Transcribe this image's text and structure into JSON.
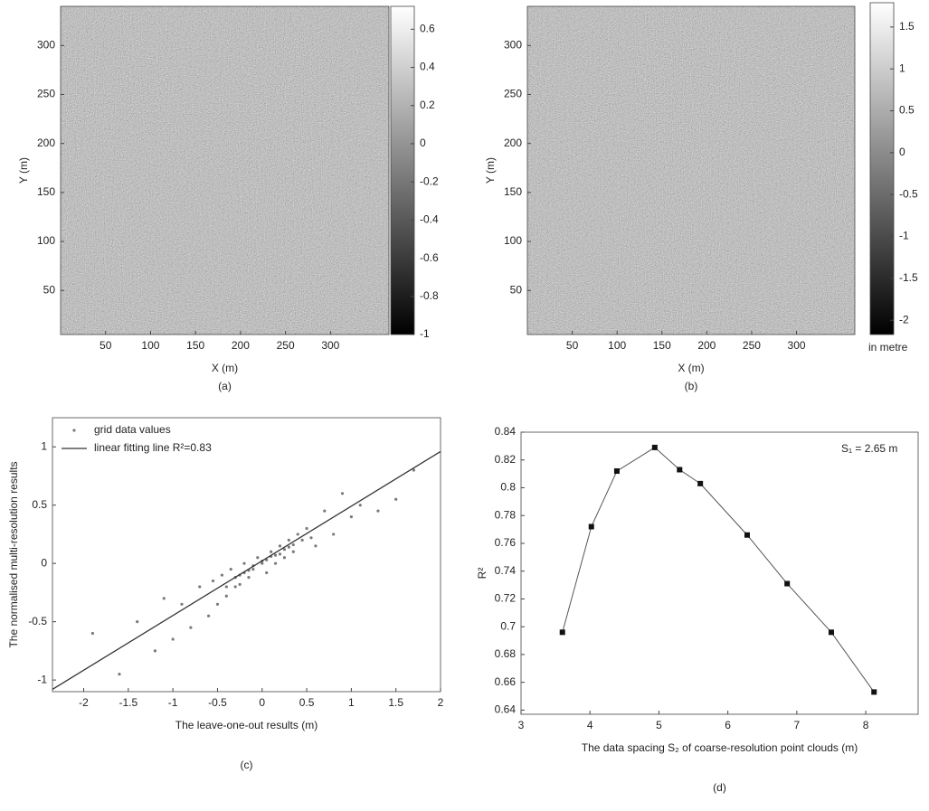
{
  "chart_data": [
    {
      "type": "image",
      "xlabel": "X (m)",
      "ylabel": "Y (m)",
      "caption": "(a)",
      "xlim": [
        0,
        365
      ],
      "xticks": [
        50,
        100,
        150,
        200,
        250,
        300
      ],
      "ylim": [
        5,
        340
      ],
      "yticks": [
        50,
        100,
        150,
        200,
        250,
        300
      ],
      "colorbar": {
        "clim": [
          -1,
          0.72
        ],
        "ticks": [
          0.6,
          0.4,
          0.2,
          0,
          -0.2,
          -0.4,
          -0.6,
          -0.8,
          -1
        ]
      }
    },
    {
      "type": "image",
      "xlabel": "X (m)",
      "ylabel": "Y (m)",
      "caption": "(b)",
      "xlim": [
        0,
        365
      ],
      "xticks": [
        50,
        100,
        150,
        200,
        250,
        300
      ],
      "ylim": [
        5,
        340
      ],
      "yticks": [
        50,
        100,
        150,
        200,
        250,
        300
      ],
      "colorbar": {
        "clim": [
          -2.17,
          1.79
        ],
        "ticks": [
          1.5,
          1,
          0.5,
          0,
          -0.5,
          -1,
          -1.5,
          -2
        ],
        "label": "in metre"
      }
    },
    {
      "type": "scatter",
      "xlabel": "The leave-one-out results (m)",
      "ylabel": "The normalised multi-resolution results",
      "caption": "(c)",
      "xlim": [
        -2.35,
        2
      ],
      "xticks": [
        -2,
        -1.5,
        -1,
        -0.5,
        0,
        0.5,
        1,
        1.5,
        2
      ],
      "ylim": [
        -1.1,
        1.25
      ],
      "yticks": [
        -1,
        -0.5,
        0,
        0.5,
        1
      ],
      "legend": "upper left",
      "series": [
        {
          "name": "grid data values",
          "color": "#7a7a7a",
          "x": [
            -1.9,
            -1.6,
            -1.4,
            -1.2,
            -1.1,
            -1.0,
            -0.9,
            -0.8,
            -0.7,
            -0.6,
            -0.55,
            -0.5,
            -0.45,
            -0.4,
            -0.35,
            -0.3,
            -0.25,
            -0.2,
            -0.15,
            -0.1,
            -0.05,
            0,
            0.05,
            0.1,
            0.15,
            0.2,
            0.25,
            0.3,
            0.35,
            0.4,
            0.5,
            0.6,
            0.7,
            0.8,
            0.9,
            1.0,
            1.1,
            1.3,
            1.5,
            1.7,
            -0.3,
            -0.2,
            -0.1,
            0,
            0.1,
            0.2,
            0.3,
            -0.25,
            -0.15,
            0.05,
            0.15,
            0.25,
            0.35,
            -0.4,
            0.45,
            0.55
          ],
          "values": [
            -0.6,
            -0.95,
            -0.5,
            -0.75,
            -0.3,
            -0.65,
            -0.35,
            -0.55,
            -0.2,
            -0.45,
            -0.15,
            -0.35,
            -0.1,
            -0.28,
            -0.05,
            -0.2,
            -0.18,
            0.0,
            -0.12,
            -0.05,
            0.05,
            0.02,
            -0.08,
            0.1,
            0.0,
            0.15,
            0.05,
            0.2,
            0.1,
            0.25,
            0.3,
            0.15,
            0.45,
            0.25,
            0.6,
            0.4,
            0.5,
            0.45,
            0.55,
            0.8,
            -0.12,
            -0.08,
            -0.02,
            0.0,
            0.06,
            0.08,
            0.14,
            -0.1,
            -0.06,
            0.03,
            0.07,
            0.12,
            0.16,
            -0.2,
            0.2,
            0.22
          ]
        },
        {
          "name": "linear fitting line R²=0.83",
          "color": "#333333",
          "x": [
            -2.35,
            2
          ],
          "values": [
            -1.08,
            0.96
          ]
        }
      ]
    },
    {
      "type": "line",
      "xlabel": "The data spacing S₂ of coarse-resolution point clouds (m)",
      "ylabel": "R²",
      "caption": "(d)",
      "annotation": "S₁ = 2.65 m",
      "color": "#555555",
      "xlim": [
        3,
        8.76
      ],
      "xticks": [
        3,
        4,
        5,
        6,
        7,
        8
      ],
      "ylim": [
        0.637,
        0.84
      ],
      "yticks": [
        0.64,
        0.66,
        0.68,
        0.7,
        0.72,
        0.74,
        0.76,
        0.78,
        0.8,
        0.82,
        0.84
      ],
      "x": [
        3.6,
        4.02,
        4.39,
        4.94,
        5.3,
        5.6,
        6.28,
        6.86,
        7.5,
        8.12
      ],
      "values": [
        0.696,
        0.772,
        0.812,
        0.829,
        0.813,
        0.803,
        0.766,
        0.731,
        0.696,
        0.653
      ]
    }
  ]
}
